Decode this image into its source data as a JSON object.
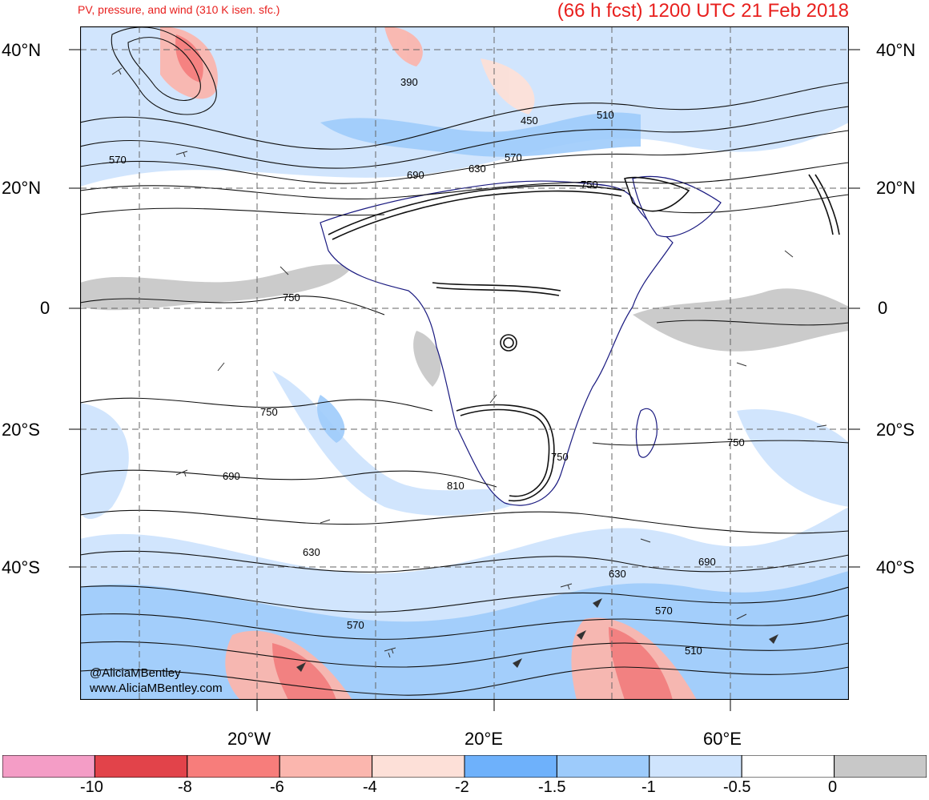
{
  "title": {
    "left": "PV, pressure, and wind (310 K isen. sfc.)",
    "right": "(66 h fcst) 1200 UTC 21 Feb 2018"
  },
  "axes": {
    "lat_labels": [
      "40°N",
      "20°N",
      "0",
      "20°S",
      "40°S"
    ],
    "lon_labels": [
      "20°W",
      "20°E",
      "60°E"
    ]
  },
  "contour_labels": [
    "390",
    "450",
    "510",
    "570",
    "570",
    "630",
    "690",
    "750",
    "750",
    "750",
    "750",
    "750",
    "810",
    "690",
    "630",
    "690",
    "630",
    "570",
    "570",
    "510"
  ],
  "credit": {
    "handle": "@AliciaMBentley",
    "site": "www.AliciaMBentley.com"
  },
  "colorbar": {
    "labels": [
      "-10",
      "-8",
      "-6",
      "-4",
      "-2",
      "-1.5",
      "-1",
      "-0.5",
      "0"
    ],
    "colors": [
      "#f49dc6",
      "#e2434a",
      "#f77d7b",
      "#fbb6ae",
      "#fde0d8",
      "#6eb1fb",
      "#9dcbfb",
      "#cfe4fd",
      "#ffffff",
      "#c8c8c8"
    ]
  }
}
